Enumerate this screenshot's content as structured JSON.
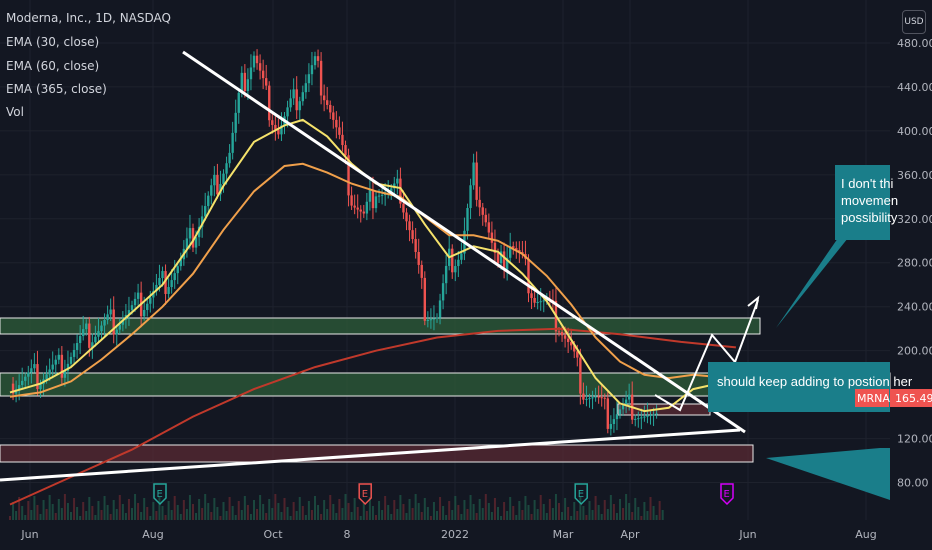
{
  "header": {
    "symbol_line": "Moderna, Inc., 1D, NASDAQ",
    "indicators": [
      "EMA (30, close)",
      "EMA (60, close)",
      "EMA (365, close)",
      "Vol"
    ],
    "currency_button": "USD"
  },
  "chart_data": {
    "type": "candlestick",
    "symbol": "MRNA",
    "last_price_label": "165.49",
    "y_ticks": [
      "480.00",
      "440.00",
      "400.00",
      "360.00",
      "320.00",
      "280.00",
      "240.00",
      "200.00",
      "160.00",
      "120.00",
      "80.00"
    ],
    "y_tick_values": [
      480,
      440,
      400,
      360,
      320,
      280,
      240,
      200,
      160,
      120,
      80
    ],
    "x_ticks": [
      "Jun",
      "Aug",
      "Oct",
      "8",
      "2022",
      "Mar",
      "Apr",
      "Jun",
      "Aug"
    ],
    "ylim": [
      55,
      510
    ],
    "price_path": [
      [
        0,
        170
      ],
      [
        8,
        175
      ],
      [
        16,
        185
      ],
      [
        24,
        210
      ],
      [
        32,
        225
      ],
      [
        40,
        235
      ],
      [
        48,
        255
      ],
      [
        56,
        280
      ],
      [
        64,
        330
      ],
      [
        72,
        380
      ],
      [
        76,
        440
      ],
      [
        80,
        470
      ],
      [
        84,
        430
      ],
      [
        88,
        400
      ],
      [
        92,
        420
      ],
      [
        96,
        440
      ],
      [
        100,
        460
      ],
      [
        104,
        430
      ],
      [
        108,
        390
      ],
      [
        112,
        340
      ],
      [
        116,
        320
      ],
      [
        120,
        350
      ],
      [
        124,
        340
      ],
      [
        128,
        345
      ],
      [
        132,
        300
      ],
      [
        136,
        240
      ],
      [
        140,
        230
      ],
      [
        144,
        280
      ],
      [
        148,
        290
      ],
      [
        152,
        360
      ],
      [
        156,
        320
      ],
      [
        160,
        270
      ],
      [
        164,
        300
      ],
      [
        168,
        280
      ],
      [
        172,
        250
      ],
      [
        176,
        240
      ],
      [
        180,
        225
      ],
      [
        184,
        200
      ],
      [
        188,
        165
      ],
      [
        192,
        155
      ],
      [
        196,
        140
      ],
      [
        200,
        145
      ],
      [
        204,
        150
      ],
      [
        208,
        140
      ],
      [
        212,
        130
      ],
      [
        216,
        145
      ],
      [
        220,
        160
      ],
      [
        224,
        175
      ],
      [
        228,
        180
      ],
      [
        232,
        175
      ],
      [
        236,
        170
      ],
      [
        238,
        165
      ]
    ],
    "ema30": [
      [
        0,
        162
      ],
      [
        10,
        170
      ],
      [
        20,
        185
      ],
      [
        30,
        210
      ],
      [
        40,
        235
      ],
      [
        50,
        260
      ],
      [
        60,
        300
      ],
      [
        70,
        350
      ],
      [
        80,
        390
      ],
      [
        90,
        405
      ],
      [
        96,
        410
      ],
      [
        104,
        395
      ],
      [
        112,
        370
      ],
      [
        120,
        352
      ],
      [
        128,
        348
      ],
      [
        136,
        315
      ],
      [
        144,
        285
      ],
      [
        152,
        295
      ],
      [
        160,
        290
      ],
      [
        168,
        270
      ],
      [
        176,
        245
      ],
      [
        184,
        210
      ],
      [
        192,
        175
      ],
      [
        200,
        152
      ],
      [
        208,
        145
      ],
      [
        216,
        148
      ],
      [
        224,
        165
      ],
      [
        232,
        170
      ],
      [
        238,
        168
      ]
    ],
    "ema60": [
      [
        0,
        158
      ],
      [
        10,
        162
      ],
      [
        20,
        172
      ],
      [
        30,
        192
      ],
      [
        40,
        215
      ],
      [
        50,
        240
      ],
      [
        60,
        270
      ],
      [
        70,
        310
      ],
      [
        80,
        345
      ],
      [
        90,
        368
      ],
      [
        96,
        370
      ],
      [
        104,
        362
      ],
      [
        112,
        352
      ],
      [
        120,
        345
      ],
      [
        128,
        340
      ],
      [
        136,
        322
      ],
      [
        144,
        305
      ],
      [
        152,
        305
      ],
      [
        160,
        300
      ],
      [
        168,
        288
      ],
      [
        176,
        268
      ],
      [
        184,
        242
      ],
      [
        192,
        212
      ],
      [
        200,
        190
      ],
      [
        208,
        178
      ],
      [
        216,
        175
      ],
      [
        224,
        178
      ],
      [
        232,
        176
      ],
      [
        238,
        173
      ]
    ],
    "ema365": [
      [
        0,
        60
      ],
      [
        20,
        85
      ],
      [
        40,
        110
      ],
      [
        60,
        140
      ],
      [
        80,
        165
      ],
      [
        100,
        185
      ],
      [
        120,
        200
      ],
      [
        140,
        212
      ],
      [
        160,
        218
      ],
      [
        180,
        220
      ],
      [
        200,
        215
      ],
      [
        220,
        208
      ],
      [
        238,
        203
      ]
    ],
    "events": [
      {
        "label": "E",
        "x": 60,
        "color": "#26a69a"
      },
      {
        "label": "E",
        "x": 136,
        "color": "#ef5350"
      },
      {
        "label": "E",
        "x": 216,
        "color": "#26a69a"
      },
      {
        "label": "E",
        "x": 270,
        "color": "#d500f9"
      }
    ],
    "annotations": {
      "callout_top": [
        "I don't thi",
        "movemen",
        "possibility"
      ],
      "callout_mid": "should keep adding to postion her"
    },
    "colors": {
      "up": "#26a69a",
      "down": "#ef5350",
      "ema30": "#f5e26b",
      "ema60": "#f0a04b",
      "ema365": "#c0392b",
      "callout": "#1a7e8a",
      "zone_green": "#2e5d3a",
      "zone_red": "#5a2a33"
    }
  }
}
